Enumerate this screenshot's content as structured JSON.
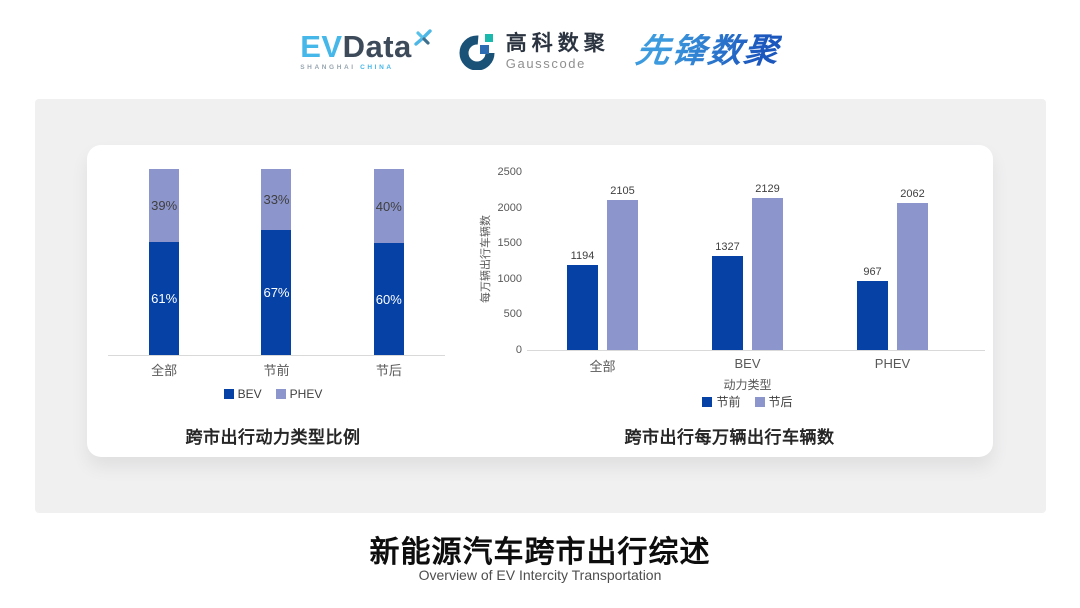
{
  "header": {
    "evdata": {
      "ev": "EV",
      "word": "Data",
      "sub1": "SHANGHAI",
      "sub2": "CHINA"
    },
    "gausscode": {
      "cn": "高科数聚",
      "en": "Gausscode"
    },
    "pioneer": {
      "text": "先锋数聚"
    }
  },
  "colors": {
    "dark_blue": "#0642a6",
    "light_blue": "#8d96cc",
    "panel_gray": "#f0f0f1",
    "ev_blue": "#45b7e8",
    "slate": "#3d4a59",
    "pioneer_blue": "#2b7ccb",
    "axis_gray": "#d9d9d9",
    "tick_text": "#595959"
  },
  "chart_data": [
    {
      "type": "bar",
      "subtype": "stacked-percent",
      "title": "跨市出行动力类型比例",
      "categories": [
        "全部",
        "节前",
        "节后"
      ],
      "series": [
        {
          "name": "BEV",
          "values": [
            61,
            67,
            60
          ]
        },
        {
          "name": "PHEV",
          "values": [
            39,
            33,
            40
          ]
        }
      ],
      "value_suffix": "%",
      "legend": [
        "BEV",
        "PHEV"
      ],
      "ylim": [
        0,
        100
      ],
      "grid": false,
      "legend_position": "bottom"
    },
    {
      "type": "bar",
      "subtype": "grouped",
      "title": "跨市出行每万辆出行车辆数",
      "categories": [
        "全部",
        "BEV",
        "PHEV"
      ],
      "series": [
        {
          "name": "节前",
          "values": [
            1194,
            1327,
            967
          ]
        },
        {
          "name": "节后",
          "values": [
            2105,
            2129,
            2062
          ]
        }
      ],
      "xlabel": "动力类型",
      "ylabel": "每万辆出行车辆数",
      "yticks": [
        0,
        500,
        1000,
        1500,
        2000,
        2500
      ],
      "ylim": [
        0,
        2500
      ],
      "legend": [
        "节前",
        "节后"
      ],
      "grid": false,
      "legend_position": "bottom"
    }
  ],
  "footer": {
    "title": "新能源汽车跨市出行综述",
    "subtitle": "Overview of EV Intercity Transportation"
  }
}
